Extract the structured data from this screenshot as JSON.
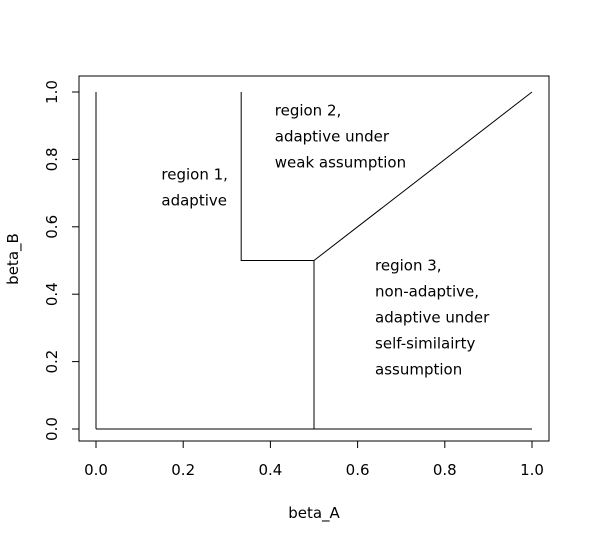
{
  "chart_data": {
    "type": "line",
    "xlabel": "beta_A",
    "ylabel": "beta_B",
    "xlim": [
      0,
      1
    ],
    "ylim": [
      0,
      1
    ],
    "x_ticks": [
      "0.0",
      "0.2",
      "0.4",
      "0.6",
      "0.8",
      "1.0"
    ],
    "y_ticks": [
      "0.0",
      "0.2",
      "0.4",
      "0.6",
      "0.8",
      "1.0"
    ],
    "series": [
      {
        "x": [
          0,
          0
        ],
        "y": [
          0,
          1
        ]
      },
      {
        "x": [
          0,
          1
        ],
        "y": [
          0,
          0
        ]
      },
      {
        "x": [
          0.333,
          0.333,
          0.5,
          0.5
        ],
        "y": [
          1,
          0.5,
          0.5,
          0
        ]
      },
      {
        "x": [
          0.5,
          1
        ],
        "y": [
          0.5,
          1
        ]
      }
    ],
    "annotations": [
      {
        "lines": [
          "region 1,",
          "adaptive"
        ],
        "x": 0.15,
        "y": 0.74
      },
      {
        "lines": [
          "region 2,",
          "adaptive under",
          "weak assumption"
        ],
        "x": 0.41,
        "y": 0.93
      },
      {
        "lines": [
          "region 3,",
          "non-adaptive,",
          "adaptive under",
          "self-similairty",
          "assumption"
        ],
        "x": 0.64,
        "y": 0.47
      }
    ],
    "grid": false
  }
}
